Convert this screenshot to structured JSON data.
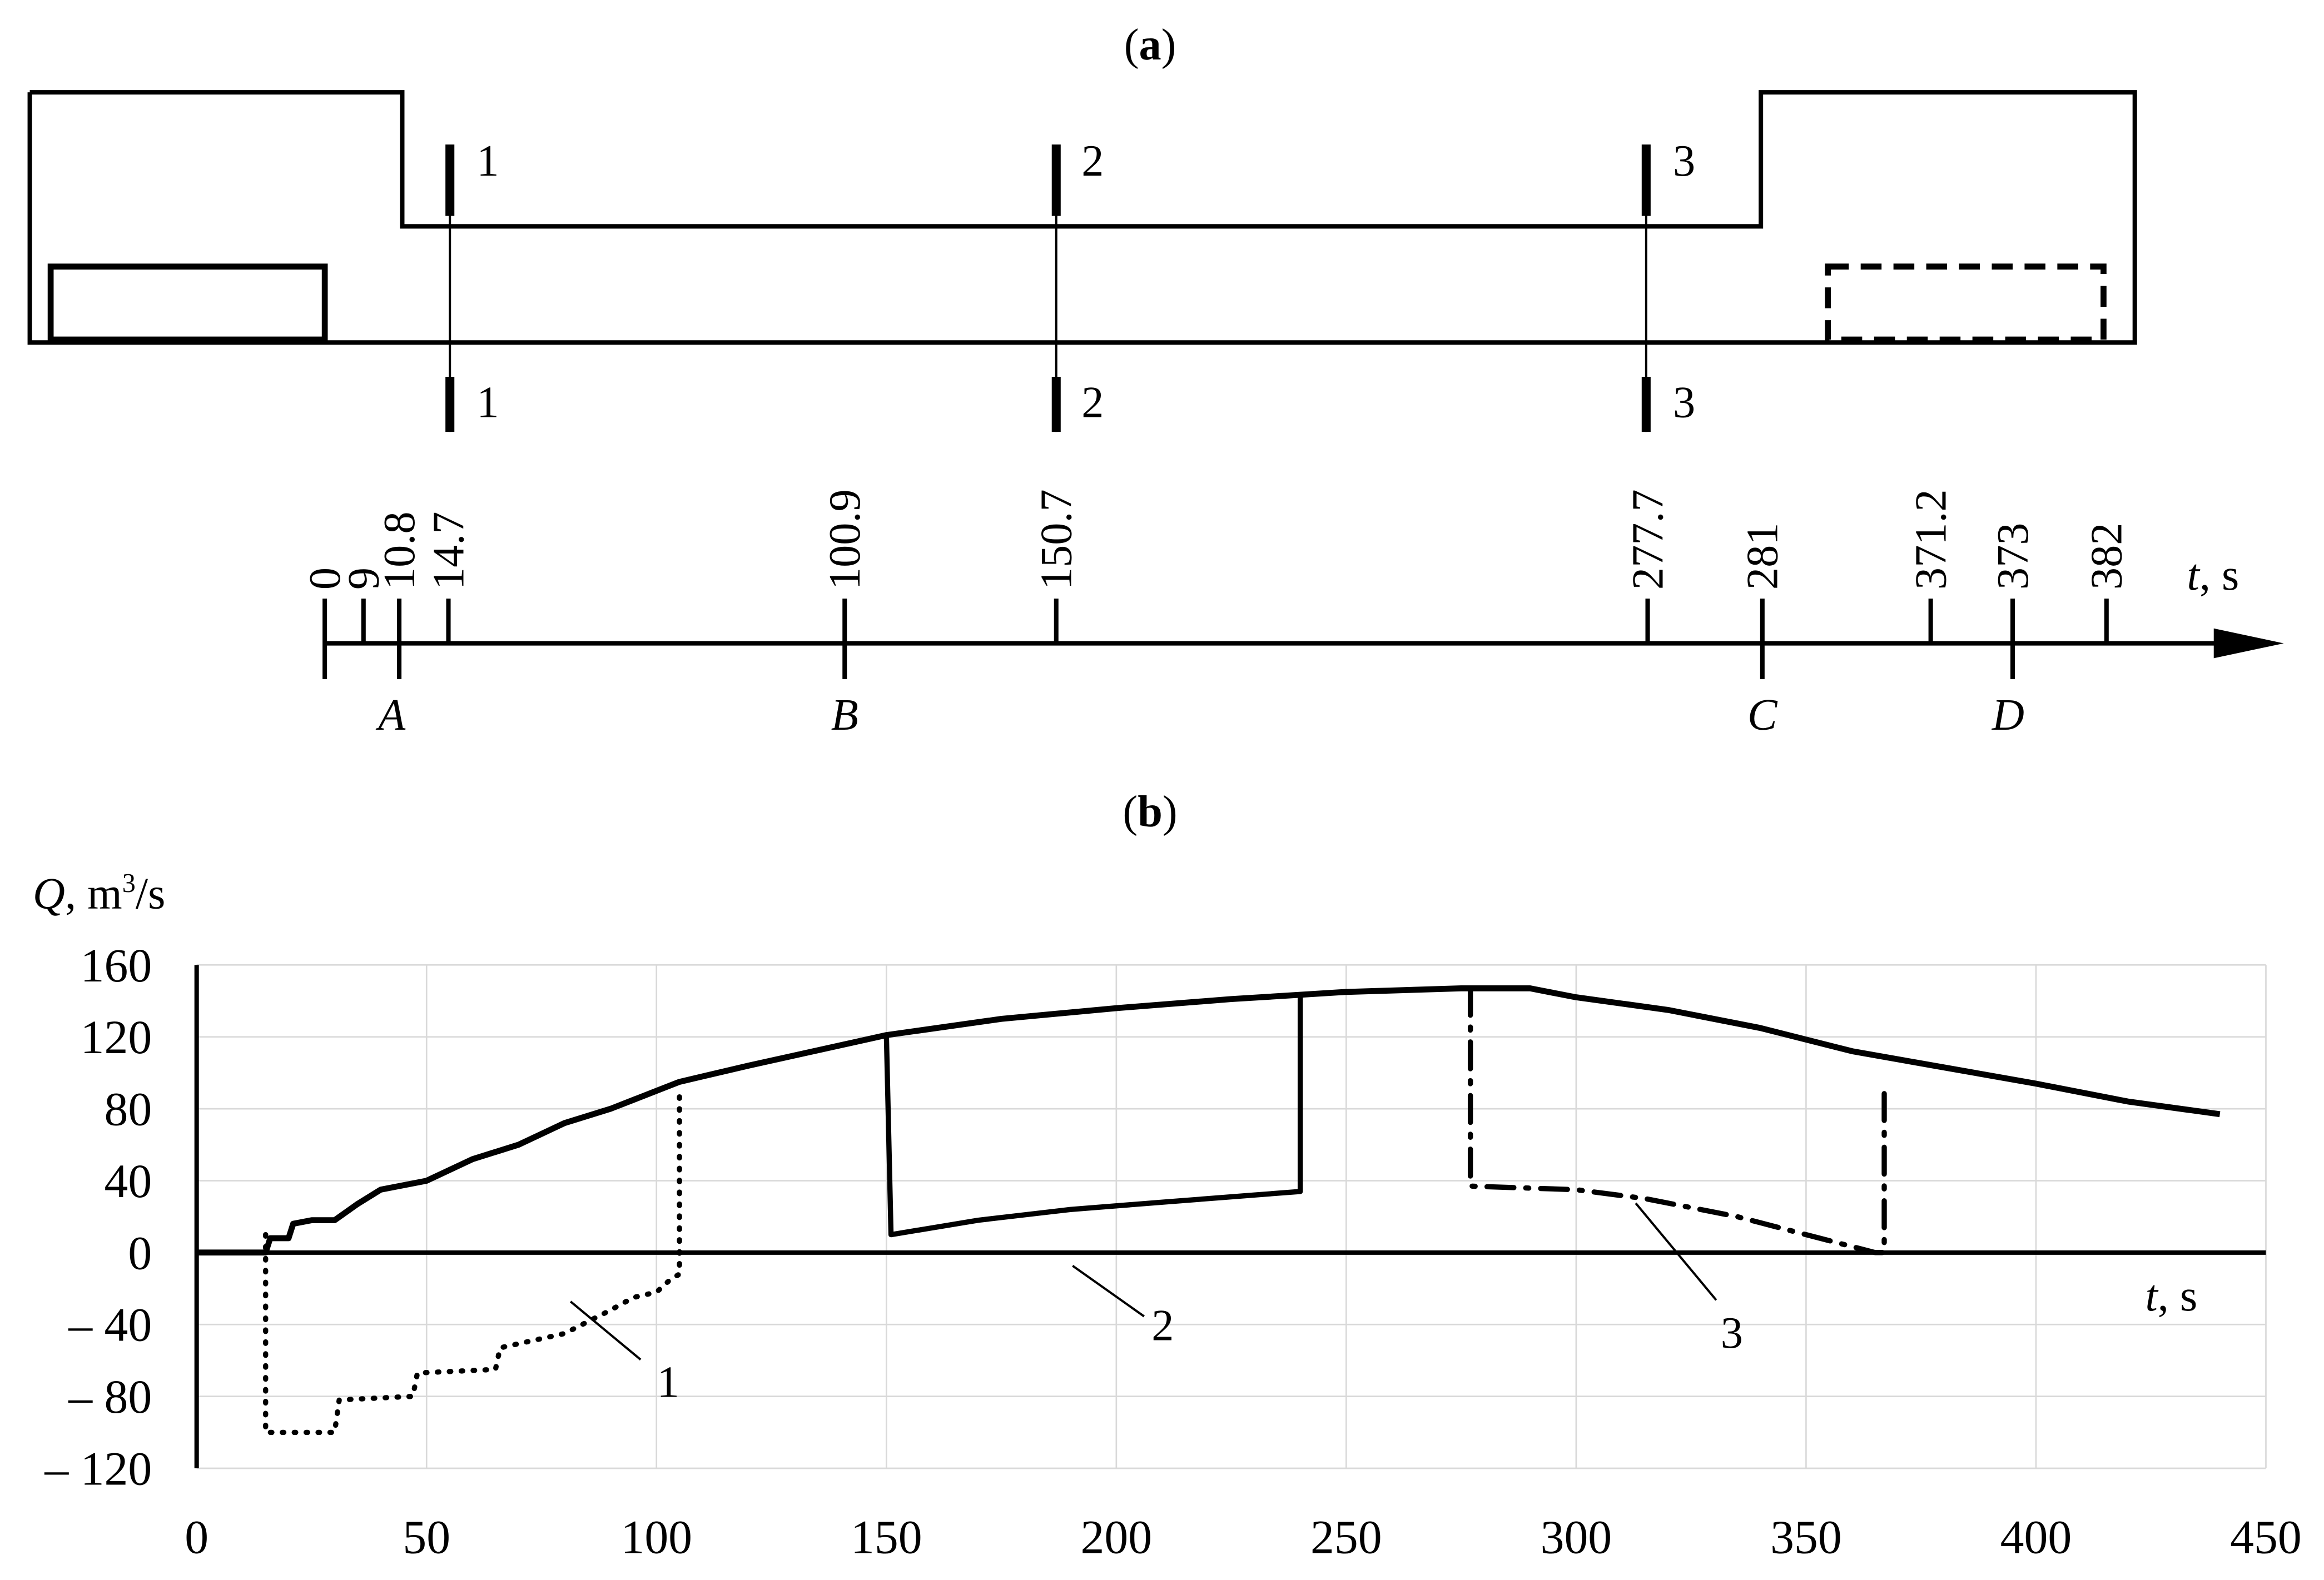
{
  "panel_a": {
    "label_open": "(",
    "label_letter": "a",
    "label_close": ")",
    "sections": [
      "1",
      "2",
      "3"
    ],
    "time_ticks": [
      "0",
      "9",
      "10.8",
      "14.7",
      "100.9",
      "150.7",
      "277.7",
      "281",
      "371.2",
      "373",
      "382"
    ],
    "points": [
      "A",
      "B",
      "C",
      "D"
    ],
    "axis_label_var": "t",
    "axis_label_unit": ", s"
  },
  "panel_b": {
    "label_open": "(",
    "label_letter": "b",
    "label_close": ")"
  },
  "chart_data": {
    "type": "line",
    "xlabel_var": "t",
    "xlabel_unit": ", s",
    "ylabel_var": "Q",
    "ylabel_unit": ", m",
    "ylabel_sup": "3",
    "ylabel_tail": "/s",
    "xlim": [
      0,
      450
    ],
    "ylim": [
      -120,
      160
    ],
    "grid": true,
    "x_ticks": [
      "0",
      "50",
      "100",
      "150",
      "200",
      "250",
      "300",
      "350",
      "400",
      "450"
    ],
    "y_ticks": [
      "160",
      "120",
      "80",
      "40",
      "0",
      "– 40",
      "– 80",
      "– 120"
    ],
    "y_tick_values": [
      160,
      120,
      80,
      40,
      0,
      -40,
      -80,
      -120
    ],
    "x_tick_values": [
      0,
      50,
      100,
      150,
      200,
      250,
      300,
      350,
      400,
      450
    ],
    "series": [
      {
        "style": "solid-envelope",
        "x": [
          0,
          15,
          16,
          20,
          21,
          25,
          30,
          35,
          40,
          50,
          60,
          70,
          80,
          90,
          100,
          105,
          120,
          150,
          175,
          200,
          225,
          250,
          275,
          290,
          300,
          320,
          340,
          360,
          380,
          400,
          420,
          440
        ],
        "y": [
          0,
          0,
          8,
          8,
          16,
          18,
          18,
          27,
          35,
          40,
          52,
          60,
          72,
          80,
          90,
          95,
          104,
          121,
          130,
          136,
          141,
          145,
          147,
          147,
          142,
          135,
          125,
          112,
          103,
          94,
          84,
          77
        ]
      },
      {
        "name": "1",
        "style": "dotted",
        "x": [
          15,
          15,
          30,
          31,
          47,
          48,
          65,
          66,
          80,
          90,
          95,
          100,
          103,
          105,
          105
        ],
        "y": [
          10,
          -100,
          -100,
          -82,
          -80,
          -67,
          -65,
          -53,
          -45,
          -32,
          -25,
          -22,
          -15,
          -12,
          90
        ]
      },
      {
        "name": "2",
        "style": "solid",
        "x": [
          150,
          151,
          170,
          190,
          210,
          230,
          240,
          240
        ],
        "y": [
          121,
          10,
          18,
          24,
          28,
          32,
          34,
          143
        ]
      },
      {
        "name": "3",
        "style": "dash-dot",
        "x": [
          277,
          277,
          300,
          315,
          335,
          350,
          365,
          367,
          367
        ],
        "y": [
          147,
          37,
          35,
          30,
          20,
          10,
          0,
          0,
          95
        ]
      }
    ],
    "annotations": [
      "1",
      "2",
      "3"
    ]
  }
}
